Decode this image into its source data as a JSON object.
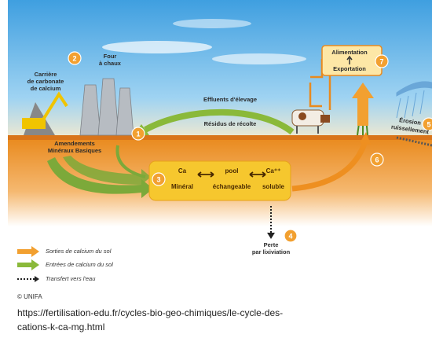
{
  "labels": {
    "quarry": [
      "Carrière",
      "de carbonate",
      "de calcium"
    ],
    "kiln": [
      "Four",
      "à chaux"
    ],
    "effluents": "Effluents d'élevage",
    "residues": "Résidus de récolte",
    "amendments": [
      "Amendements",
      "Minéraux Basiques"
    ],
    "food": "Alimentation",
    "export": "Exportation",
    "erosion": [
      "Érosion",
      "ruissellement"
    ],
    "leaching": [
      "Perte",
      "par lixiviation"
    ]
  },
  "pool": {
    "mineral": [
      "Ca",
      "Minéral"
    ],
    "exchangeable": [
      "pool",
      "échangeable"
    ],
    "soluble": [
      "Ca⁺⁺",
      "soluble"
    ]
  },
  "steps": [
    "1",
    "2",
    "3",
    "4",
    "5",
    "6",
    "7"
  ],
  "legend": [
    "Sorties de calcium du sol",
    "Entrées de calcium du sol",
    "Transfert vers l'eau"
  ],
  "credit": "© UNIFA",
  "source": [
    "https://fertilisation-edu.fr/cycles-bio-geo-chimiques/le-cycle-des-",
    "cations-k-ca-mg.html"
  ]
}
